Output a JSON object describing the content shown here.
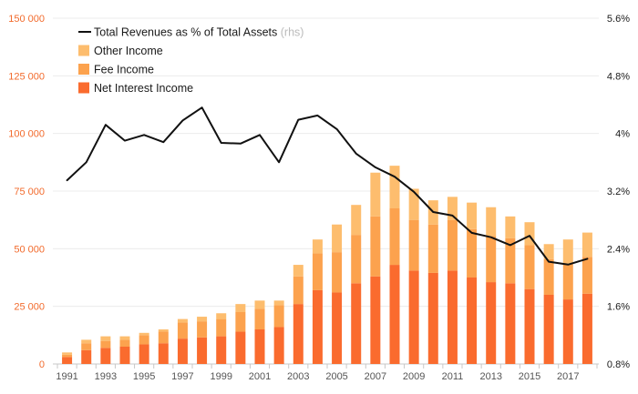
{
  "chart_data": {
    "type": "bar",
    "stacked": true,
    "title": "",
    "xlabel": "",
    "ylabel_left": "",
    "ylabel_right": "",
    "categories": [
      "1991",
      "1992",
      "1993",
      "1994",
      "1995",
      "1996",
      "1997",
      "1998",
      "1999",
      "2000",
      "2001",
      "2002",
      "2003",
      "2004",
      "2005",
      "2006",
      "2007",
      "2008",
      "2009",
      "2010",
      "2011",
      "2012",
      "2013",
      "2014",
      "2015",
      "2016",
      "2017",
      "2018"
    ],
    "x_tick_labels": [
      "1991",
      "1993",
      "1995",
      "1997",
      "1999",
      "2001",
      "2003",
      "2005",
      "2007",
      "2009",
      "2011",
      "2013",
      "2015",
      "2017"
    ],
    "ylim_left": [
      0,
      150000
    ],
    "y_ticks_left": [
      0,
      25000,
      50000,
      75000,
      100000,
      125000,
      150000
    ],
    "y_tick_labels_left": [
      "0",
      "25 000",
      "50 000",
      "75 000",
      "100 000",
      "125 000",
      "150 000"
    ],
    "ylim_right": [
      0.8,
      5.6
    ],
    "y_ticks_right": [
      0.8,
      1.6,
      2.4,
      3.2,
      4.0,
      4.8,
      5.6
    ],
    "y_tick_labels_right": [
      "0.8%",
      "1.6%",
      "2.4%",
      "3.2%",
      "4%",
      "4.8%",
      "5.6%"
    ],
    "grid": true,
    "legend_position": "top-left",
    "series": [
      {
        "name": "Net Interest Income",
        "axis": "left",
        "kind": "bar",
        "color": "#fa6b2e",
        "values": [
          3000,
          6000,
          7000,
          7500,
          8500,
          9000,
          11000,
          11500,
          12000,
          14000,
          15000,
          16000,
          26000,
          32000,
          31000,
          35000,
          38000,
          43000,
          40500,
          39500,
          40500,
          37500,
          35500,
          35000,
          32500,
          30000,
          28000,
          30500
        ]
      },
      {
        "name": "Fee Income",
        "axis": "left",
        "kind": "bar",
        "color": "#fca24e",
        "values": [
          1000,
          3000,
          3000,
          3000,
          4000,
          5000,
          7000,
          7000,
          7500,
          8500,
          9000,
          9500,
          12000,
          16000,
          17500,
          21000,
          26000,
          24500,
          22000,
          21000,
          22000,
          21000,
          20000,
          19500,
          19000,
          15500,
          15500,
          16000
        ]
      },
      {
        "name": "Other Income",
        "axis": "left",
        "kind": "bar",
        "color": "#fdbd6e",
        "values": [
          1000,
          1500,
          2000,
          1500,
          1000,
          1000,
          1500,
          2000,
          2500,
          3500,
          3500,
          2000,
          5000,
          6000,
          12000,
          13000,
          19000,
          18500,
          13500,
          10500,
          10000,
          11500,
          12500,
          9500,
          10000,
          6500,
          10500,
          10500
        ]
      },
      {
        "name": "Total Revenues as % of Total Assets",
        "suffix": "(rhs)",
        "axis": "right",
        "kind": "line",
        "color": "#111111",
        "values": [
          3.35,
          3.6,
          4.12,
          3.9,
          3.98,
          3.88,
          4.18,
          4.36,
          3.87,
          3.86,
          3.98,
          3.6,
          4.19,
          4.25,
          4.06,
          3.72,
          3.53,
          3.4,
          3.19,
          2.91,
          2.86,
          2.62,
          2.56,
          2.45,
          2.58,
          2.22,
          2.18,
          2.26
        ]
      }
    ]
  }
}
